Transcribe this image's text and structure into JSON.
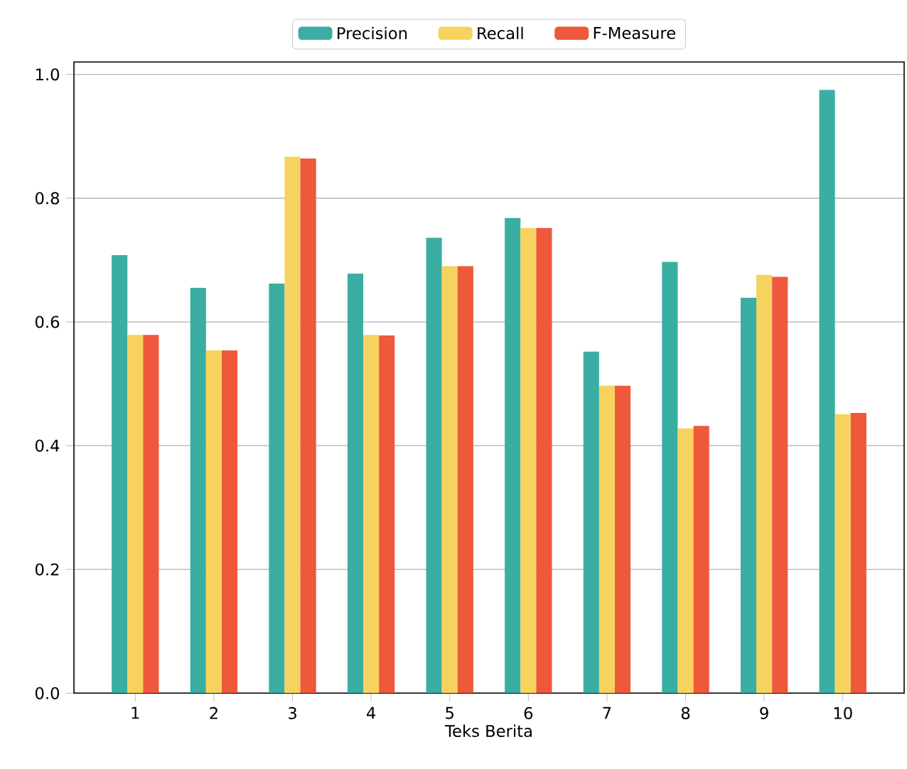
{
  "chart_data": {
    "type": "bar",
    "xlabel": "Teks Berita",
    "categories": [
      "1",
      "2",
      "3",
      "4",
      "5",
      "6",
      "7",
      "8",
      "9",
      "10"
    ],
    "series": [
      {
        "name": "Precision",
        "color": "#3aaea2",
        "values": [
          0.708,
          0.655,
          0.662,
          0.678,
          0.736,
          0.768,
          0.552,
          0.697,
          0.639,
          0.975
        ]
      },
      {
        "name": "Recall",
        "color": "#f6d35f",
        "values": [
          0.579,
          0.554,
          0.867,
          0.579,
          0.69,
          0.752,
          0.497,
          0.428,
          0.676,
          0.451
        ]
      },
      {
        "name": "F-Measure",
        "color": "#ee583b",
        "values": [
          0.579,
          0.554,
          0.864,
          0.578,
          0.69,
          0.752,
          0.497,
          0.432,
          0.673,
          0.453
        ]
      }
    ],
    "ylim": [
      0,
      1.02
    ],
    "yticks": [
      {
        "value": 0,
        "label": "0.0"
      },
      {
        "value": 0.2,
        "label": "0.2"
      },
      {
        "value": 0.4,
        "label": "0.4"
      },
      {
        "value": 0.6,
        "label": "0.6"
      },
      {
        "value": 0.8,
        "label": "0.8"
      },
      {
        "value": 1.0,
        "label": "1.0"
      }
    ],
    "grid": "y",
    "legend": "top"
  }
}
